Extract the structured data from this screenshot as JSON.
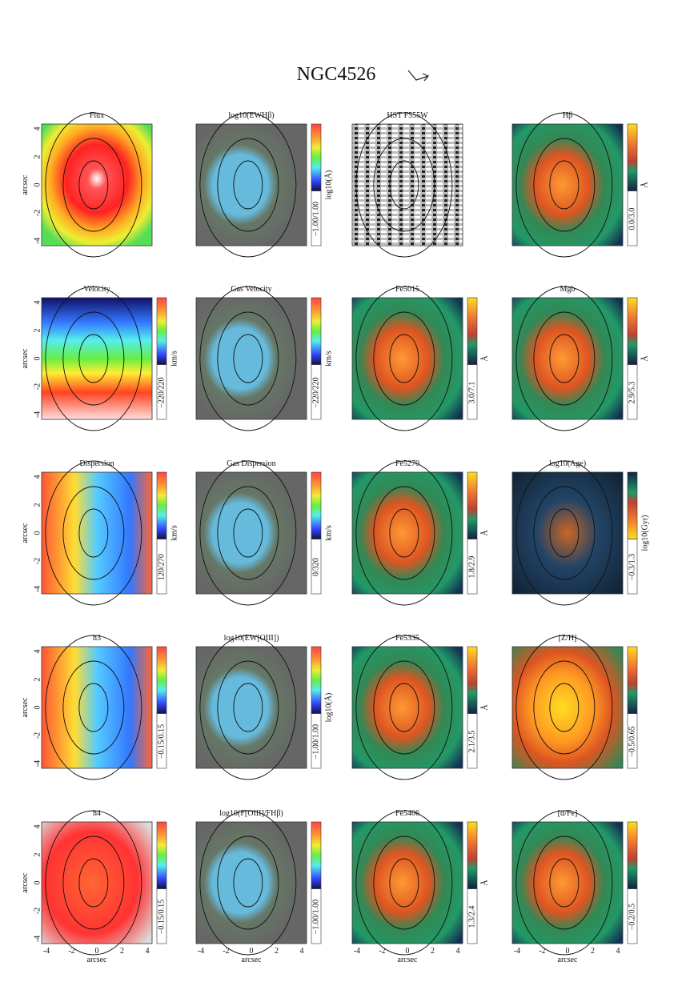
{
  "header": {
    "title": "NGC4526"
  },
  "axes": {
    "y_ticks": [
      4,
      2,
      0,
      -2,
      -4
    ],
    "x_ticks": [
      -4,
      -2,
      0,
      2,
      4
    ],
    "y_label": "arcsec",
    "x_label": "arcsec"
  },
  "panels": [
    {
      "title": "Flux"
    },
    {
      "title": "log10(EWHβ)",
      "range": "−1.00/1.00",
      "unit": "log10(Å)"
    },
    {
      "title": "HST F555W"
    },
    {
      "title": "Hβ",
      "range": "0.0/3.0",
      "unit": "Å"
    },
    {
      "title": "Velocity",
      "range": "−220/220",
      "unit": "km/s"
    },
    {
      "title": "Gas Velocity",
      "range": "−220/220",
      "unit": "km/s"
    },
    {
      "title": "Fe5015",
      "range": "3.0/7.1",
      "unit": "Å"
    },
    {
      "title": "Mgb",
      "range": "2.9/5.3",
      "unit": "Å"
    },
    {
      "title": "Dispersion",
      "range": "120/270",
      "unit": "km/s"
    },
    {
      "title": "Gas Dispersion",
      "range": "0/320",
      "unit": "km/s"
    },
    {
      "title": "Fe5270",
      "range": "1.8/2.9",
      "unit": "Å"
    },
    {
      "title": "log10(Age)",
      "range": "−0.3/1.3",
      "unit": "log10(Gyr)"
    },
    {
      "title": "h3",
      "range": "−0.15/0.15"
    },
    {
      "title": "log10(EW[OIII])",
      "range": "−1.00/1.00",
      "unit": "log10(Å)"
    },
    {
      "title": "Fe5335",
      "range": "2.1/3.5",
      "unit": "Å"
    },
    {
      "title": "[Z/H]",
      "range": "−0.5/0.65"
    },
    {
      "title": "h4",
      "range": "−0.15/0.15"
    },
    {
      "title": "log10(F[OIII]/FHβ)",
      "range": "−1.00/1.00"
    },
    {
      "title": "Fe5406",
      "range": "1.3/2.4",
      "unit": "Å"
    },
    {
      "title": "[α/Fe]",
      "range": "−0.2/0.5"
    }
  ]
}
